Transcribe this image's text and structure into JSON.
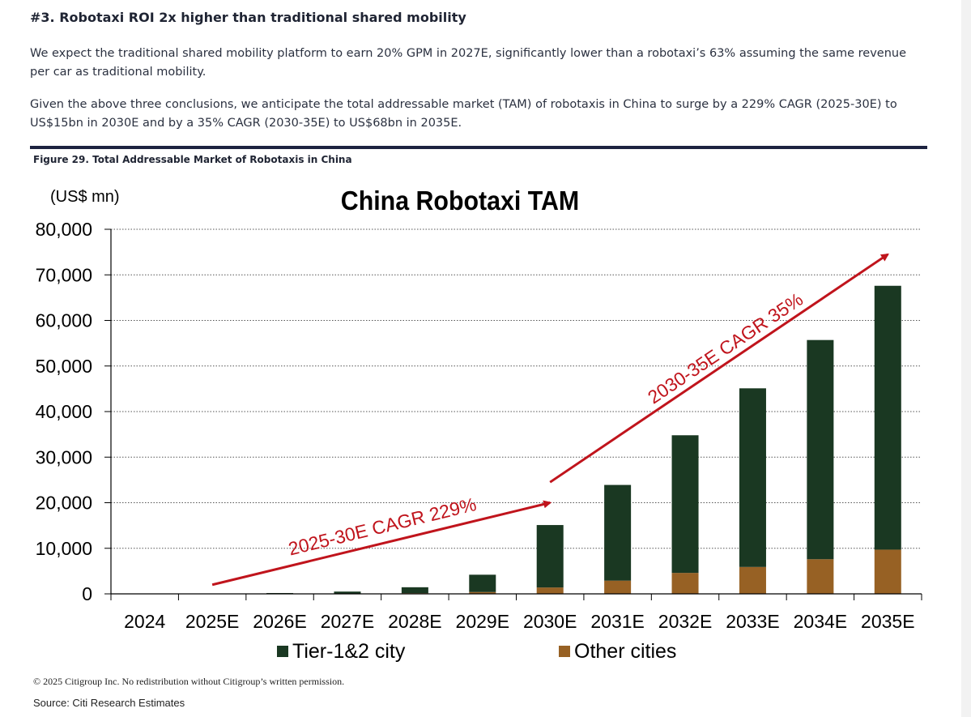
{
  "heading": "#3. Robotaxi ROI 2x higher than traditional shared mobility",
  "paragraphs": [
    "We expect the traditional shared mobility platform to earn 20% GPM in 2027E, significantly lower than a robotaxi’s 63% assuming the same revenue per car as traditional mobility.",
    "Given the above three conclusions, we anticipate the total addressable market (TAM) of robotaxis in China to surge by a 229% CAGR (2025-30E) to US$15bn in 2030E and by a 35% CAGR (2030-35E) to US$68bn in 2035E."
  ],
  "figure_caption": "Figure 29. Total Addressable Market of Robotaxis in China",
  "copyright": "© 2025 Citigroup Inc. No redistribution without Citigroup’s written permission.",
  "source": "Source: Citi Research Estimates",
  "colors": {
    "tier12": "#1a3822",
    "other": "#976124",
    "arrow": "#c0141c",
    "rule": "#1d2340"
  },
  "chart_data": {
    "type": "bar",
    "stacked": true,
    "title": "China Robotaxi TAM",
    "ylabel": "(US$ mn)",
    "xlabel": "",
    "ylim": [
      0,
      80000
    ],
    "ytick_step": 10000,
    "ytick_labels": [
      "0",
      "10,000",
      "20,000",
      "30,000",
      "40,000",
      "50,000",
      "60,000",
      "70,000",
      "80,000"
    ],
    "grid": true,
    "legend_position": "bottom",
    "categories": [
      "2024",
      "2025E",
      "2026E",
      "2027E",
      "2028E",
      "2029E",
      "2030E",
      "2031E",
      "2032E",
      "2033E",
      "2034E",
      "2035E"
    ],
    "series": [
      {
        "name": "Other cities",
        "values": [
          0,
          5,
          20,
          60,
          150,
          400,
          1400,
          2900,
          4600,
          5900,
          7600,
          9700
        ]
      },
      {
        "name": "Tier-1&2 city",
        "values": [
          0,
          30,
          160,
          440,
          1300,
          3800,
          13700,
          21000,
          30200,
          39200,
          48100,
          57900
        ]
      }
    ],
    "legend": [
      {
        "label": "Tier-1&2 city",
        "series": "Tier-1&2 city"
      },
      {
        "label": "Other cities",
        "series": "Other cities"
      }
    ],
    "annotations": [
      {
        "text": "2025-30E CAGR 229%",
        "from": {
          "x": "2025E",
          "y": 2000
        },
        "to": {
          "x": "2030E",
          "y": 20000
        }
      },
      {
        "text": "2030-35E CAGR 35%",
        "from": {
          "x": "2030E",
          "y": 24500
        },
        "to": {
          "x": "2035E",
          "y": 74500
        }
      }
    ]
  }
}
